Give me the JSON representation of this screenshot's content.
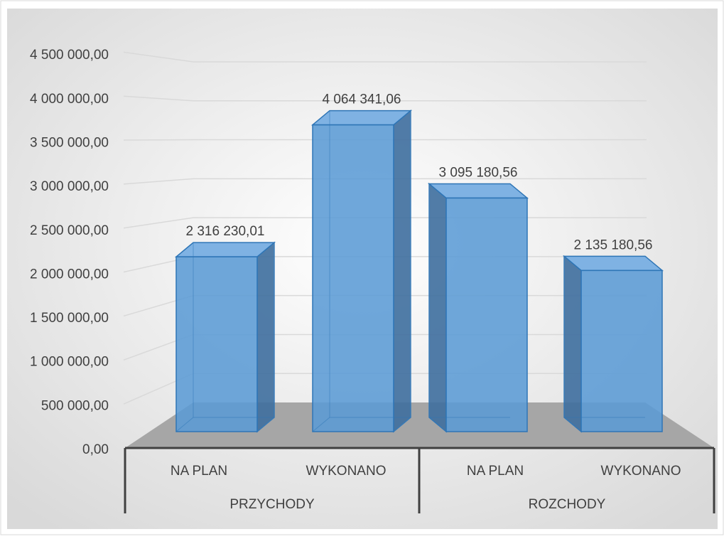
{
  "chart_data": {
    "type": "bar",
    "title": "",
    "xlabel": "",
    "ylabel": "",
    "ylim": [
      0,
      4500000
    ],
    "y_ticks": [
      "0,00",
      "500 000,00",
      "1 000 000,00",
      "1 500 000,00",
      "2 000 000,00",
      "2 500 000,00",
      "3 000 000,00",
      "3 500 000,00",
      "4 000 000,00",
      "4 500 000,00"
    ],
    "y_tick_values": [
      0,
      500000,
      1000000,
      1500000,
      2000000,
      2500000,
      3000000,
      3500000,
      4000000,
      4500000
    ],
    "groups": [
      "PRZYCHODY",
      "ROZCHODY"
    ],
    "categories": [
      "NA PLAN",
      "WYKONANO",
      "NA PLAN",
      "WYKONANO"
    ],
    "values": [
      2316230.01,
      4064341.06,
      3095180.56,
      2135180.56
    ],
    "data_labels": [
      "2 316 230,01",
      "4 064 341,06",
      "3 095 180,56",
      "2 135 180,56"
    ],
    "grid": true,
    "style": "3d-column",
    "colors": {
      "bar": "#5b9bd5",
      "bar_edge": "#2e75b6",
      "floor": "#a6a6a6"
    }
  }
}
